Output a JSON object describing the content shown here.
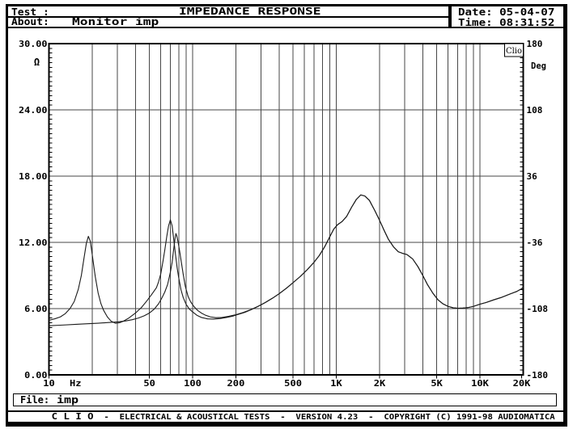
{
  "header": {
    "test_label": "Test :",
    "test_value": "",
    "title": "IMPEDANCE RESPONSE",
    "about_label": "About:",
    "about_value": "Monitor imp",
    "date_label": "Date: 05-04-07",
    "time_label": "Time: 08:31:52"
  },
  "file_bar": {
    "label": "File:",
    "value": "imp"
  },
  "footer": {
    "brand": "C L I O",
    "text": "-  ELECTRICAL & ACOUSTICAL TESTS  -  VERSION 4.23  -  COPYRIGHT (C) 1991-98 AUDIOMATICA"
  },
  "chart_data": {
    "type": "line",
    "title": "IMPEDANCE RESPONSE",
    "x_axis": {
      "scale": "log",
      "unit": "Hz",
      "min_hz": 10,
      "max_hz": 20000,
      "tick_labels": [
        {
          "label": "10",
          "f": 10,
          "tick": true
        },
        {
          "label": "Hz",
          "f": 15.3,
          "tick": false
        },
        {
          "label": "50",
          "f": 50,
          "tick": true
        },
        {
          "label": "100",
          "f": 100,
          "tick": true
        },
        {
          "label": "200",
          "f": 200,
          "tick": true
        },
        {
          "label": "500",
          "f": 500,
          "tick": true
        },
        {
          "label": "1K",
          "f": 1000,
          "tick": true
        },
        {
          "label": "2K",
          "f": 2000,
          "tick": true
        },
        {
          "label": "5K",
          "f": 5000,
          "tick": true
        },
        {
          "label": "10K",
          "f": 10000,
          "tick": true
        },
        {
          "label": "20K",
          "f": 19500,
          "tick": true
        }
      ],
      "gridline_freqs": [
        20,
        30,
        40,
        50,
        60,
        70,
        80,
        90,
        100,
        200,
        300,
        400,
        500,
        600,
        700,
        800,
        900,
        1000,
        2000,
        3000,
        4000,
        5000,
        6000,
        7000,
        8000,
        9000,
        10000
      ]
    },
    "y_left": {
      "label": "Ω",
      "min": 0,
      "max": 30,
      "tick_labels": [
        "30.00",
        "24.00",
        "18.00",
        "12.00",
        "6.00",
        "0.00"
      ],
      "grid_values": [
        24,
        18,
        12,
        6
      ]
    },
    "y_right": {
      "label": "Deg",
      "min": -180,
      "max": 180,
      "tick_labels": [
        "180",
        "108",
        "36",
        "-36",
        "-108",
        "-180"
      ]
    },
    "watermark": "Clio",
    "grid": true,
    "legend": "none",
    "series": [
      {
        "name": "impedance-magnitude-curve-1",
        "unit": "ohm",
        "points": [
          [
            10,
            4.95
          ],
          [
            11,
            5.08
          ],
          [
            12,
            5.25
          ],
          [
            13,
            5.55
          ],
          [
            14,
            6.0
          ],
          [
            15,
            6.65
          ],
          [
            16,
            7.75
          ],
          [
            16.8,
            9.0
          ],
          [
            17.5,
            10.5
          ],
          [
            18.2,
            11.9
          ],
          [
            18.8,
            12.55
          ],
          [
            19.4,
            12.1
          ],
          [
            20,
            10.9
          ],
          [
            21,
            8.9
          ],
          [
            22,
            7.4
          ],
          [
            23,
            6.45
          ],
          [
            24,
            5.85
          ],
          [
            25.5,
            5.25
          ],
          [
            27,
            4.88
          ],
          [
            29,
            4.67
          ],
          [
            31,
            4.72
          ],
          [
            33,
            4.87
          ],
          [
            36,
            5.15
          ],
          [
            40,
            5.6
          ],
          [
            44,
            6.1
          ],
          [
            48,
            6.7
          ],
          [
            52,
            7.3
          ],
          [
            56,
            7.9
          ],
          [
            58,
            8.45
          ],
          [
            60,
            9.15
          ],
          [
            62,
            10.2
          ],
          [
            64,
            11.3
          ],
          [
            66,
            12.5
          ],
          [
            68,
            13.5
          ],
          [
            70,
            14.05
          ],
          [
            72,
            13.5
          ],
          [
            74,
            12.2
          ],
          [
            76,
            10.9
          ],
          [
            78,
            9.7
          ],
          [
            80,
            8.8
          ],
          [
            83,
            7.7
          ],
          [
            86,
            7.0
          ],
          [
            90,
            6.4
          ],
          [
            95,
            5.95
          ],
          [
            100,
            5.7
          ],
          [
            107,
            5.4
          ],
          [
            115,
            5.2
          ],
          [
            127,
            5.07
          ],
          [
            140,
            5.05
          ],
          [
            155,
            5.1
          ],
          [
            172,
            5.2
          ],
          [
            190,
            5.32
          ],
          [
            210,
            5.5
          ],
          [
            230,
            5.65
          ],
          [
            255,
            5.9
          ],
          [
            285,
            6.2
          ],
          [
            320,
            6.55
          ],
          [
            360,
            6.95
          ],
          [
            400,
            7.35
          ],
          [
            450,
            7.85
          ],
          [
            500,
            8.35
          ],
          [
            560,
            8.9
          ],
          [
            630,
            9.55
          ],
          [
            700,
            10.2
          ],
          [
            760,
            10.8
          ],
          [
            830,
            11.6
          ],
          [
            900,
            12.5
          ],
          [
            960,
            13.2
          ],
          [
            1020,
            13.6
          ],
          [
            1100,
            13.9
          ],
          [
            1180,
            14.35
          ],
          [
            1280,
            15.2
          ],
          [
            1380,
            15.9
          ],
          [
            1480,
            16.3
          ],
          [
            1580,
            16.2
          ],
          [
            1700,
            15.8
          ],
          [
            1850,
            14.9
          ],
          [
            2000,
            14.0
          ],
          [
            2150,
            13.1
          ],
          [
            2300,
            12.3
          ],
          [
            2500,
            11.6
          ],
          [
            2700,
            11.15
          ],
          [
            2900,
            11.0
          ],
          [
            3100,
            10.9
          ],
          [
            3400,
            10.5
          ],
          [
            3700,
            9.8
          ],
          [
            4000,
            9.0
          ],
          [
            4300,
            8.2
          ],
          [
            4700,
            7.4
          ],
          [
            5100,
            6.8
          ],
          [
            5500,
            6.45
          ],
          [
            6000,
            6.2
          ],
          [
            6500,
            6.08
          ],
          [
            7000,
            6.03
          ],
          [
            7600,
            6.05
          ],
          [
            8300,
            6.1
          ],
          [
            9000,
            6.2
          ],
          [
            10000,
            6.4
          ],
          [
            11000,
            6.55
          ],
          [
            12500,
            6.8
          ],
          [
            14000,
            7.0
          ],
          [
            16000,
            7.3
          ],
          [
            18000,
            7.55
          ],
          [
            19500,
            7.8
          ],
          [
            20000,
            7.95
          ]
        ]
      },
      {
        "name": "impedance-magnitude-curve-2",
        "unit": "ohm",
        "points": [
          [
            10,
            4.45
          ],
          [
            12,
            4.5
          ],
          [
            15,
            4.57
          ],
          [
            18,
            4.62
          ],
          [
            22,
            4.68
          ],
          [
            26,
            4.74
          ],
          [
            30,
            4.8
          ],
          [
            34,
            4.88
          ],
          [
            38,
            5.0
          ],
          [
            42,
            5.15
          ],
          [
            46,
            5.35
          ],
          [
            50,
            5.6
          ],
          [
            54,
            5.95
          ],
          [
            58,
            6.45
          ],
          [
            61,
            6.95
          ],
          [
            64,
            7.5
          ],
          [
            67,
            8.2
          ],
          [
            70,
            9.3
          ],
          [
            72,
            10.2
          ],
          [
            74,
            11.5
          ],
          [
            75.5,
            12.4
          ],
          [
            76.5,
            12.8
          ],
          [
            77.5,
            12.6
          ],
          [
            79,
            12.1
          ],
          [
            81,
            11.3
          ],
          [
            83,
            10.4
          ],
          [
            86,
            9.1
          ],
          [
            89,
            8.0
          ],
          [
            93,
            7.1
          ],
          [
            97,
            6.6
          ],
          [
            102,
            6.2
          ],
          [
            108,
            5.85
          ],
          [
            115,
            5.6
          ],
          [
            123,
            5.4
          ],
          [
            133,
            5.25
          ],
          [
            145,
            5.18
          ],
          [
            160,
            5.2
          ],
          [
            178,
            5.3
          ],
          [
            200,
            5.45
          ],
          [
            225,
            5.65
          ],
          [
            255,
            5.92
          ],
          [
            285,
            6.2
          ],
          [
            320,
            6.55
          ],
          [
            360,
            6.95
          ],
          [
            400,
            7.35
          ],
          [
            450,
            7.85
          ],
          [
            500,
            8.35
          ],
          [
            560,
            8.9
          ],
          [
            630,
            9.55
          ],
          [
            700,
            10.2
          ],
          [
            760,
            10.8
          ],
          [
            830,
            11.6
          ],
          [
            900,
            12.5
          ],
          [
            960,
            13.2
          ],
          [
            1020,
            13.6
          ],
          [
            1100,
            13.9
          ],
          [
            1180,
            14.35
          ],
          [
            1280,
            15.2
          ],
          [
            1380,
            15.9
          ],
          [
            1480,
            16.3
          ],
          [
            1580,
            16.2
          ],
          [
            1700,
            15.8
          ],
          [
            1850,
            14.9
          ],
          [
            2000,
            14.0
          ],
          [
            2150,
            13.1
          ],
          [
            2300,
            12.3
          ],
          [
            2500,
            11.6
          ],
          [
            2700,
            11.15
          ],
          [
            2900,
            11.0
          ],
          [
            3100,
            10.9
          ],
          [
            3400,
            10.5
          ],
          [
            3700,
            9.8
          ],
          [
            4000,
            9.0
          ],
          [
            4300,
            8.2
          ],
          [
            4700,
            7.4
          ],
          [
            5100,
            6.8
          ],
          [
            5500,
            6.45
          ],
          [
            6000,
            6.2
          ],
          [
            6500,
            6.08
          ],
          [
            7000,
            6.03
          ],
          [
            7600,
            6.05
          ],
          [
            8300,
            6.1
          ],
          [
            9000,
            6.2
          ],
          [
            10000,
            6.4
          ],
          [
            11000,
            6.55
          ],
          [
            12500,
            6.8
          ],
          [
            14000,
            7.0
          ],
          [
            16000,
            7.3
          ],
          [
            18000,
            7.55
          ],
          [
            19500,
            7.8
          ],
          [
            20000,
            7.95
          ]
        ]
      }
    ]
  },
  "colors": {
    "frame": "#000000",
    "grid": "#474747",
    "curve": "#1a1a1a",
    "background": "#ffffff"
  }
}
